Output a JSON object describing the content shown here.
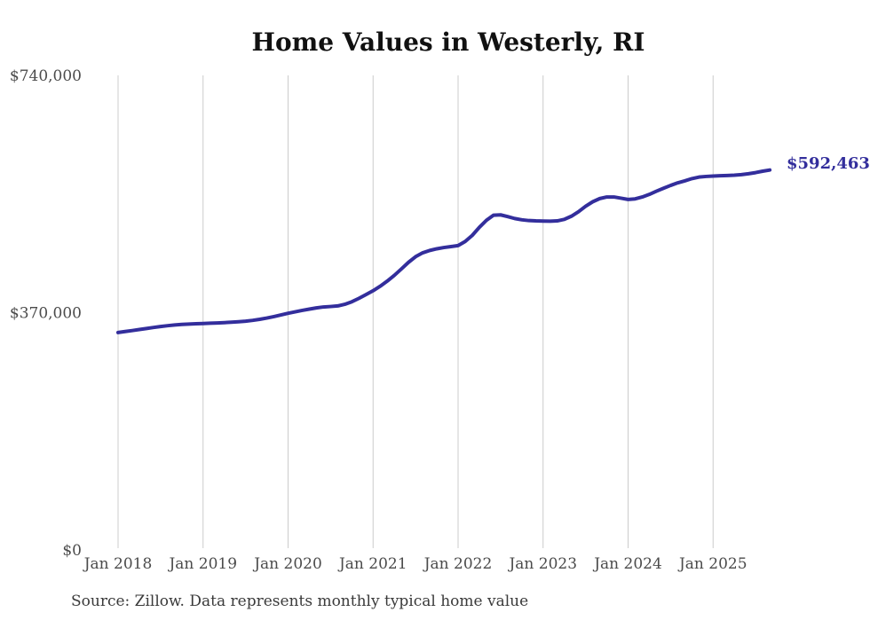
{
  "chart": {
    "title": "Home Values in Westerly, RI",
    "source_note": "Source: Zillow. Data represents monthly typical home value",
    "latest_value_label": "$592,463"
  },
  "chart_data": {
    "type": "line",
    "title": "Home Values in Westerly, RI",
    "xlabel": "",
    "ylabel": "",
    "ylim": [
      0,
      740000
    ],
    "grid": "vertical",
    "legend": "none",
    "x_start": "Jan 2018",
    "x_end": "Sep 2025",
    "frequency": "monthly",
    "x_tick_labels": [
      "Jan 2018",
      "Jan 2019",
      "Jan 2020",
      "Jan 2021",
      "Jan 2022",
      "Jan 2023",
      "Jan 2024",
      "Jan 2025"
    ],
    "y_ticks": [
      {
        "label": "$0",
        "value": 0
      },
      {
        "label": "$370,000",
        "value": 370000
      },
      {
        "label": "$740,000",
        "value": 740000
      }
    ],
    "series": [
      {
        "name": "Typical home value",
        "values": [
          339000,
          340600,
          342100,
          343700,
          345300,
          346900,
          348400,
          349700,
          350800,
          351600,
          352200,
          352700,
          353100,
          353500,
          354000,
          354500,
          355100,
          355800,
          356700,
          358000,
          359600,
          361600,
          363900,
          366400,
          369000,
          371300,
          373500,
          375500,
          377400,
          378900,
          379600,
          380500,
          383000,
          387000,
          392300,
          398200,
          404200,
          411200,
          419200,
          428200,
          438200,
          448500,
          457300,
          463300,
          467000,
          469600,
          471600,
          473100,
          474600,
          481000,
          490500,
          503000,
          514000,
          522000,
          522500,
          519800,
          516800,
          514800,
          513600,
          513100,
          512900,
          512600,
          513100,
          515500,
          520400,
          527400,
          535900,
          542900,
          547900,
          550400,
          550400,
          548500,
          546500,
          547400,
          550400,
          554400,
          559400,
          564000,
          568400,
          572400,
          575500,
          579000,
          581400,
          582400,
          583000,
          583500,
          583900,
          584400,
          585200,
          586600,
          588400,
          590600,
          592463
        ]
      }
    ],
    "last_point": {
      "label": "$592,463",
      "value": 592463,
      "x": "Sep 2025"
    },
    "colors": {
      "line": "#332e9c",
      "grid": "#cccccc",
      "axis_text": "#4b4b4b",
      "title_text": "#111111",
      "annotation_text": "#332e9c",
      "source_text": "#3a3a3a",
      "background": "#ffffff"
    }
  }
}
